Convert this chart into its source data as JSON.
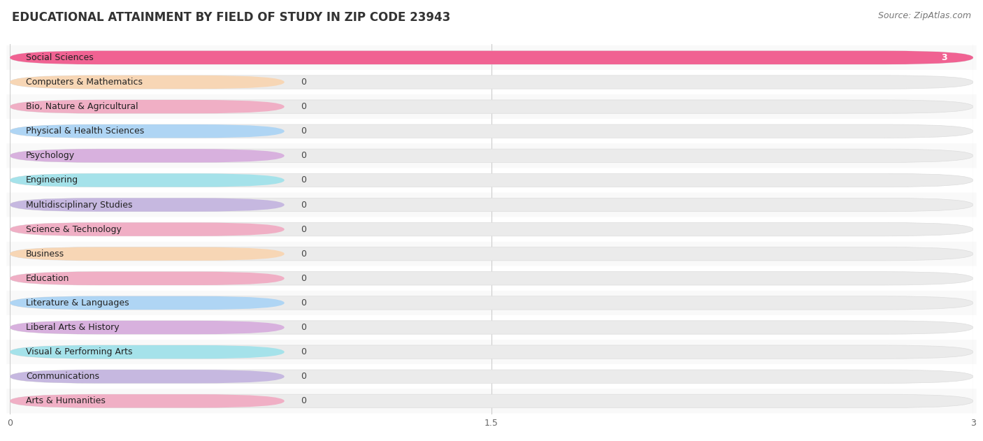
{
  "title": "EDUCATIONAL ATTAINMENT BY FIELD OF STUDY IN ZIP CODE 23943",
  "source": "Source: ZipAtlas.com",
  "categories": [
    "Social Sciences",
    "Computers & Mathematics",
    "Bio, Nature & Agricultural",
    "Physical & Health Sciences",
    "Psychology",
    "Engineering",
    "Multidisciplinary Studies",
    "Science & Technology",
    "Business",
    "Education",
    "Literature & Languages",
    "Liberal Arts & History",
    "Visual & Performing Arts",
    "Communications",
    "Arts & Humanities"
  ],
  "values": [
    3,
    0,
    0,
    0,
    0,
    0,
    0,
    0,
    0,
    0,
    0,
    0,
    0,
    0,
    0
  ],
  "bar_colors": [
    "#F06292",
    "#FFCC99",
    "#F48FB1",
    "#90CAF9",
    "#CE93D8",
    "#80DEEA",
    "#B39DDB",
    "#F48FB1",
    "#FFCC99",
    "#F48FB1",
    "#90CAF9",
    "#CE93D8",
    "#80DEEA",
    "#B39DDB",
    "#F48FB1"
  ],
  "xlim": [
    0,
    3
  ],
  "xticks": [
    0,
    1.5,
    3
  ],
  "background_color": "#FFFFFF",
  "bar_bg_color": "#EBEBEB",
  "row_bg_color": "#F7F7F7",
  "title_fontsize": 12,
  "label_fontsize": 9,
  "value_fontsize": 9,
  "source_fontsize": 9
}
